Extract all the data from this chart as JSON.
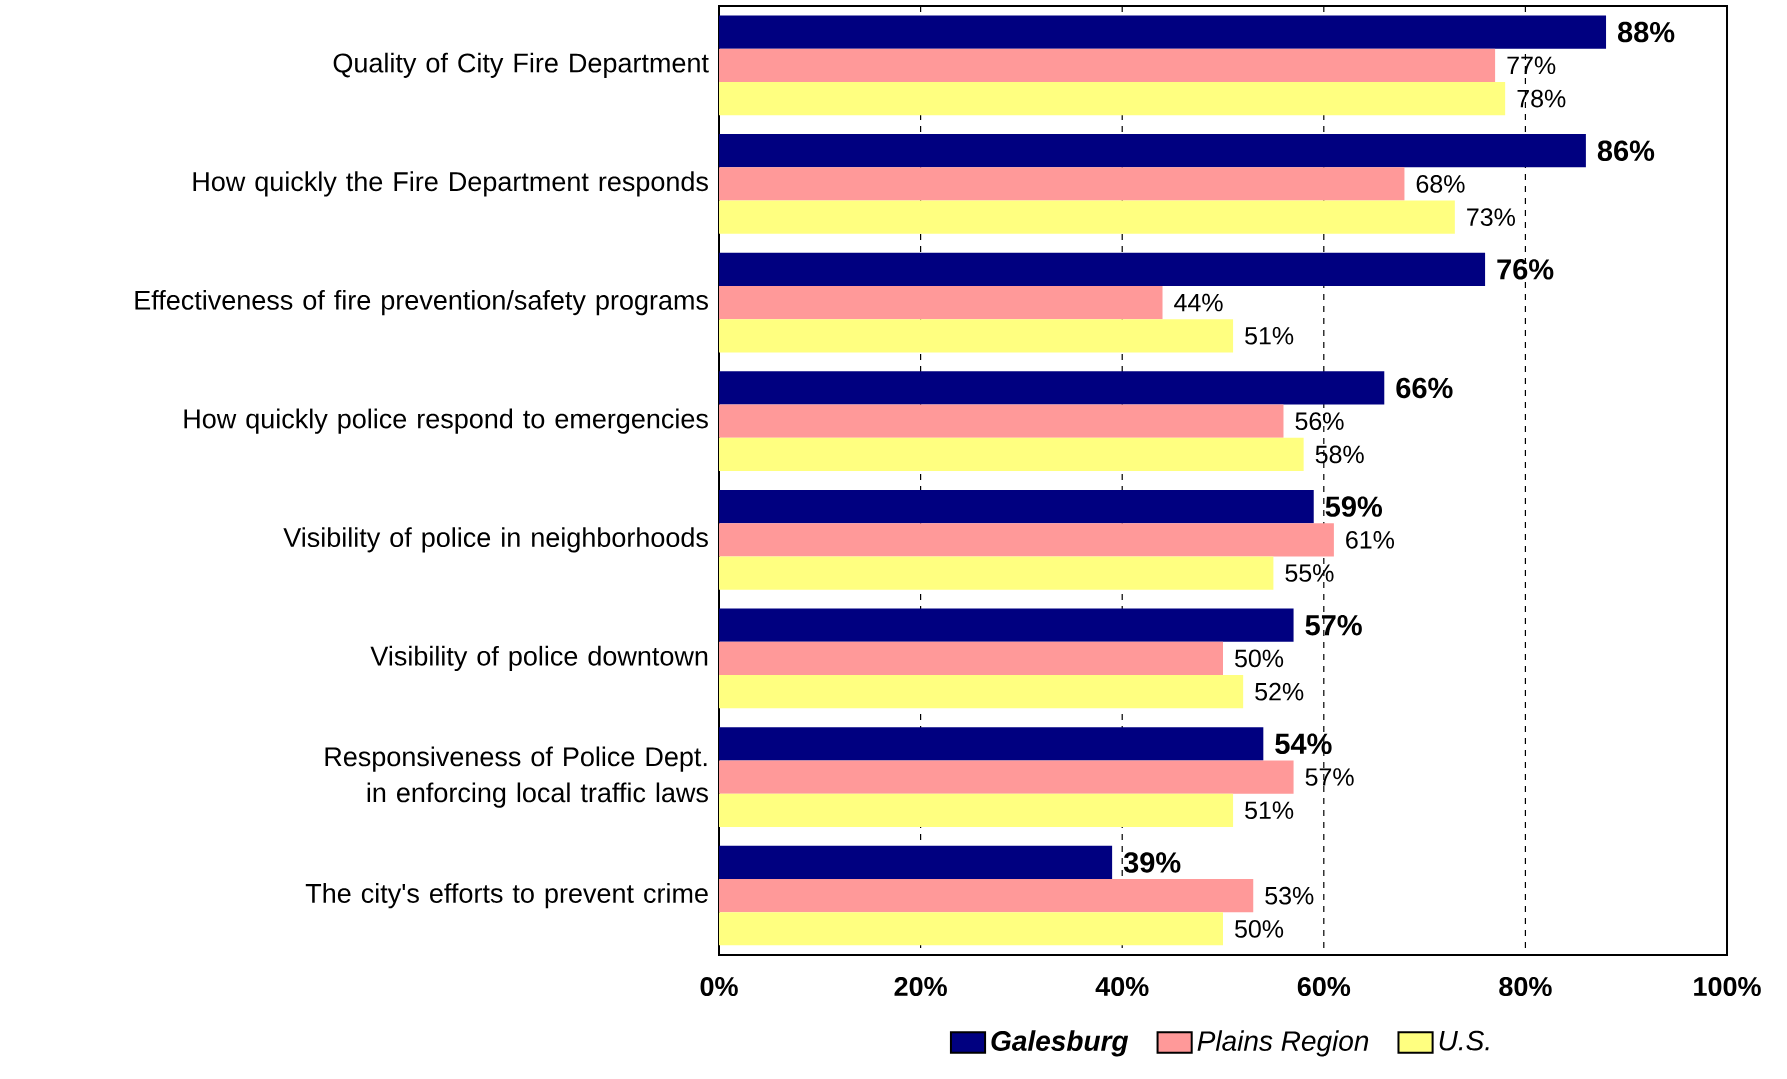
{
  "chart_data": {
    "type": "bar",
    "orientation": "horizontal",
    "categories": [
      "Quality of City Fire Department",
      "How quickly the Fire Department responds",
      "Effectiveness of fire prevention/safety programs",
      "How quickly police respond to emergencies",
      "Visibility of police in neighborhoods",
      "Visibility of police downtown",
      "Responsiveness of Police Dept. in enforcing local traffic laws",
      "The city's efforts to prevent crime"
    ],
    "series": [
      {
        "name": "Galesburg",
        "color": "#000080",
        "values": [
          88,
          86,
          76,
          66,
          59,
          57,
          54,
          39
        ],
        "value_labels": [
          "88%",
          "86%",
          "76%",
          "66%",
          "59%",
          "57%",
          "54%",
          "39%"
        ]
      },
      {
        "name": "Plains Region",
        "color": "#ff9999",
        "values": [
          77,
          68,
          44,
          56,
          61,
          50,
          57,
          53
        ],
        "value_labels": [
          "77%",
          "68%",
          "44%",
          "56%",
          "61%",
          "50%",
          "57%",
          "53%"
        ]
      },
      {
        "name": "U.S.",
        "color": "#ffff80",
        "values": [
          78,
          73,
          51,
          58,
          55,
          52,
          51,
          50
        ],
        "value_labels": [
          "78%",
          "73%",
          "51%",
          "58%",
          "55%",
          "52%",
          "51%",
          "50%"
        ]
      }
    ],
    "xlim": [
      0,
      100
    ],
    "xticks": [
      {
        "value": 0,
        "label": "0%"
      },
      {
        "value": 20,
        "label": "20%"
      },
      {
        "value": 40,
        "label": "40%"
      },
      {
        "value": 60,
        "label": "60%"
      },
      {
        "value": 80,
        "label": "80%"
      },
      {
        "value": 100,
        "label": "100%"
      }
    ],
    "grid": "x",
    "legend": "bottom"
  }
}
